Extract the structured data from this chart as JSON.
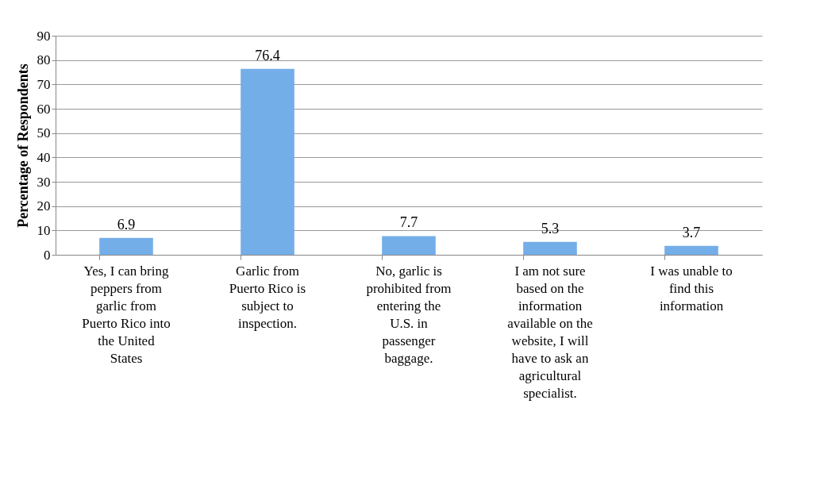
{
  "chart_data": {
    "type": "bar",
    "ylabel": "Percentage of Respondents",
    "categories": [
      "Yes, I can bring peppers from garlic from Puerto Rico into the United States",
      "Garlic from Puerto Rico is subject to inspection.",
      "No, garlic is prohibited from entering the U.S. in passenger baggage.",
      "I am not sure based on the information available on the website, I will have to ask an agricultural specialist.",
      "I was unable to find this information"
    ],
    "values": [
      6.9,
      76.4,
      7.7,
      5.3,
      3.7
    ],
    "color": "#74aee9",
    "ylim": [
      0,
      90
    ],
    "yticks": [
      0,
      10,
      20,
      30,
      40,
      50,
      60,
      70,
      80,
      90
    ],
    "grid": "y",
    "data_labels": true
  }
}
